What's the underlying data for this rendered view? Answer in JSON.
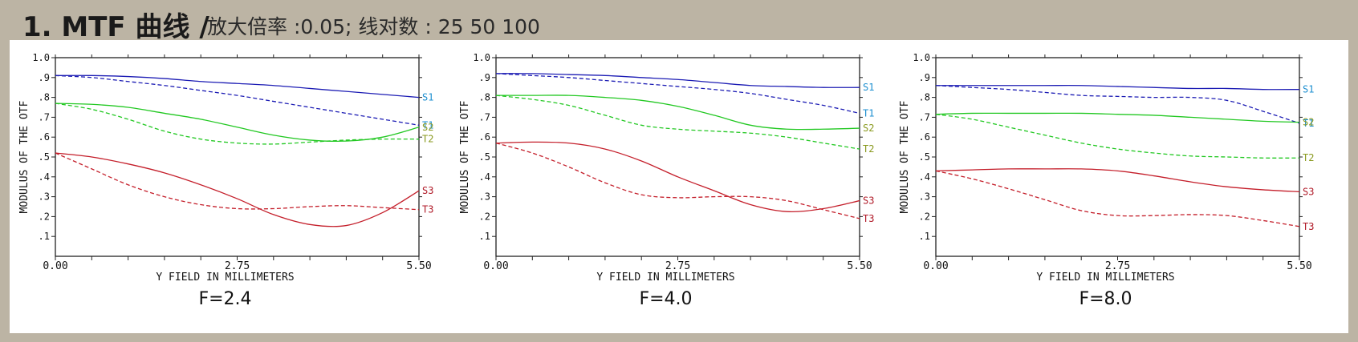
{
  "header": {
    "title": "1. MTF 曲线 /",
    "subtitle": "放大倍率 :0.05;  线对数 : 25 50 100"
  },
  "chart_data": [
    {
      "type": "line",
      "figure_label": "F=2.4",
      "xlabel": "Y FIELD IN MILLIMETERS",
      "ylabel": "MODULUS OF THE OTF",
      "xlim": [
        0,
        5.5
      ],
      "ylim": [
        0,
        1.0
      ],
      "x_ticks": [
        "0.00",
        "2.75",
        "5.50"
      ],
      "y_ticks": [
        ".1",
        ".2",
        ".3",
        ".4",
        ".5",
        ".6",
        ".7",
        ".8",
        ".9",
        "1.0"
      ],
      "grid": false,
      "legend": "right-edge labels",
      "x": [
        0,
        0.55,
        1.1,
        1.65,
        2.2,
        2.75,
        3.3,
        3.85,
        4.4,
        4.95,
        5.5
      ],
      "series": [
        {
          "name": "S1",
          "color": "#1c1cb4",
          "dashed": false,
          "values": [
            0.91,
            0.91,
            0.905,
            0.895,
            0.88,
            0.87,
            0.86,
            0.845,
            0.83,
            0.815,
            0.8
          ]
        },
        {
          "name": "T1",
          "color": "#1c1cb4",
          "dashed": true,
          "values": [
            0.91,
            0.9,
            0.88,
            0.86,
            0.835,
            0.81,
            0.78,
            0.75,
            0.72,
            0.69,
            0.66
          ]
        },
        {
          "name": "S2",
          "color": "#22c822",
          "dashed": false,
          "values": [
            0.77,
            0.765,
            0.75,
            0.72,
            0.69,
            0.65,
            0.61,
            0.585,
            0.58,
            0.6,
            0.65
          ]
        },
        {
          "name": "T2",
          "color": "#22c822",
          "dashed": true,
          "values": [
            0.77,
            0.74,
            0.69,
            0.63,
            0.59,
            0.57,
            0.565,
            0.575,
            0.585,
            0.59,
            0.59
          ]
        },
        {
          "name": "S3",
          "color": "#c41e2a",
          "dashed": false,
          "values": [
            0.52,
            0.5,
            0.465,
            0.42,
            0.36,
            0.29,
            0.21,
            0.16,
            0.155,
            0.22,
            0.33
          ]
        },
        {
          "name": "T3",
          "color": "#c41e2a",
          "dashed": true,
          "values": [
            0.52,
            0.44,
            0.36,
            0.3,
            0.26,
            0.24,
            0.24,
            0.25,
            0.255,
            0.245,
            0.235
          ]
        }
      ]
    },
    {
      "type": "line",
      "figure_label": "F=4.0",
      "xlabel": "Y FIELD IN MILLIMETERS",
      "ylabel": "MODULUS OF THE OTF",
      "xlim": [
        0,
        5.5
      ],
      "ylim": [
        0,
        1.0
      ],
      "x_ticks": [
        "0.00",
        "2.75",
        "5.50"
      ],
      "y_ticks": [
        ".1",
        ".2",
        ".3",
        ".4",
        ".5",
        ".6",
        ".7",
        ".8",
        ".9",
        "1.0"
      ],
      "grid": false,
      "legend": "right-edge labels",
      "x": [
        0,
        0.55,
        1.1,
        1.65,
        2.2,
        2.75,
        3.3,
        3.85,
        4.4,
        4.95,
        5.5
      ],
      "series": [
        {
          "name": "S1",
          "color": "#1c1cb4",
          "dashed": false,
          "values": [
            0.92,
            0.92,
            0.915,
            0.91,
            0.9,
            0.89,
            0.875,
            0.86,
            0.855,
            0.85,
            0.85
          ]
        },
        {
          "name": "T1",
          "color": "#1c1cb4",
          "dashed": true,
          "values": [
            0.92,
            0.91,
            0.9,
            0.885,
            0.87,
            0.855,
            0.84,
            0.82,
            0.79,
            0.76,
            0.72
          ]
        },
        {
          "name": "S2",
          "color": "#22c822",
          "dashed": false,
          "values": [
            0.81,
            0.81,
            0.81,
            0.8,
            0.785,
            0.755,
            0.71,
            0.66,
            0.64,
            0.64,
            0.645
          ]
        },
        {
          "name": "T2",
          "color": "#22c822",
          "dashed": true,
          "values": [
            0.81,
            0.79,
            0.76,
            0.71,
            0.66,
            0.64,
            0.63,
            0.62,
            0.6,
            0.57,
            0.54
          ]
        },
        {
          "name": "S3",
          "color": "#c41e2a",
          "dashed": false,
          "values": [
            0.57,
            0.575,
            0.57,
            0.54,
            0.48,
            0.4,
            0.33,
            0.26,
            0.225,
            0.24,
            0.28
          ]
        },
        {
          "name": "T3",
          "color": "#c41e2a",
          "dashed": true,
          "values": [
            0.57,
            0.52,
            0.45,
            0.37,
            0.31,
            0.295,
            0.3,
            0.3,
            0.28,
            0.235,
            0.19
          ]
        }
      ]
    },
    {
      "type": "line",
      "figure_label": "F=8.0",
      "xlabel": "Y FIELD IN MILLIMETERS",
      "ylabel": "MODULUS OF THE OTF",
      "xlim": [
        0,
        5.5
      ],
      "ylim": [
        0,
        1.0
      ],
      "x_ticks": [
        "0.00",
        "2.75",
        "5.50"
      ],
      "y_ticks": [
        ".1",
        ".2",
        ".3",
        ".4",
        ".5",
        ".6",
        ".7",
        ".8",
        ".9",
        "1.0"
      ],
      "grid": false,
      "legend": "right-edge labels",
      "x": [
        0,
        0.55,
        1.1,
        1.65,
        2.2,
        2.75,
        3.3,
        3.85,
        4.4,
        4.95,
        5.5
      ],
      "series": [
        {
          "name": "S1",
          "color": "#1c1cb4",
          "dashed": false,
          "values": [
            0.86,
            0.86,
            0.86,
            0.86,
            0.86,
            0.855,
            0.85,
            0.845,
            0.845,
            0.84,
            0.84
          ]
        },
        {
          "name": "T1",
          "color": "#1c1cb4",
          "dashed": true,
          "values": [
            0.86,
            0.85,
            0.84,
            0.825,
            0.81,
            0.805,
            0.8,
            0.8,
            0.785,
            0.73,
            0.67
          ]
        },
        {
          "name": "S2",
          "color": "#22c822",
          "dashed": false,
          "values": [
            0.715,
            0.72,
            0.72,
            0.72,
            0.72,
            0.715,
            0.71,
            0.7,
            0.69,
            0.68,
            0.675
          ]
        },
        {
          "name": "T2",
          "color": "#22c822",
          "dashed": true,
          "values": [
            0.715,
            0.69,
            0.65,
            0.61,
            0.57,
            0.54,
            0.52,
            0.505,
            0.5,
            0.495,
            0.495
          ]
        },
        {
          "name": "S3",
          "color": "#c41e2a",
          "dashed": false,
          "values": [
            0.43,
            0.435,
            0.44,
            0.44,
            0.44,
            0.43,
            0.405,
            0.375,
            0.35,
            0.335,
            0.325
          ]
        },
        {
          "name": "T3",
          "color": "#c41e2a",
          "dashed": true,
          "values": [
            0.43,
            0.39,
            0.34,
            0.285,
            0.23,
            0.205,
            0.205,
            0.21,
            0.205,
            0.18,
            0.15
          ]
        }
      ]
    }
  ]
}
